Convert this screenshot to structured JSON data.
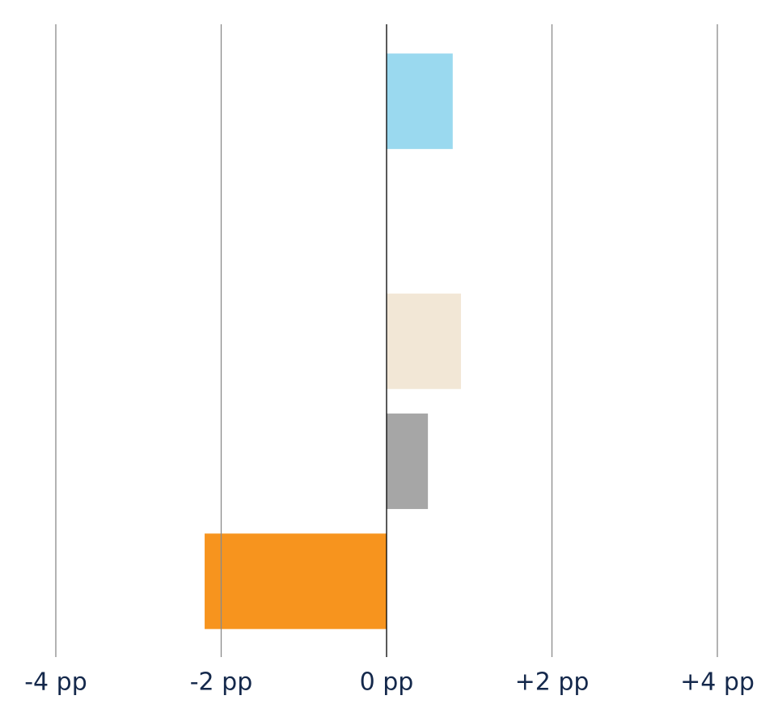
{
  "chart_data": {
    "type": "hbar",
    "categories": [
      null,
      null,
      null,
      null,
      null
    ],
    "values": [
      0.8,
      null,
      0.9,
      0.5,
      -2.2
    ],
    "colors": [
      "#9ad9ef",
      null,
      "#f2e7d6",
      "#a6a6a6",
      "#f7941e"
    ],
    "xlim": [
      -4,
      4
    ],
    "xticks": [
      {
        "value": -4,
        "label": "-4 pp"
      },
      {
        "value": -2,
        "label": "-2 pp"
      },
      {
        "value": 0,
        "label": "0 pp"
      },
      {
        "value": 2,
        "label": "+2 pp"
      },
      {
        "value": 4,
        "label": "+4 pp"
      }
    ],
    "grid": true
  }
}
